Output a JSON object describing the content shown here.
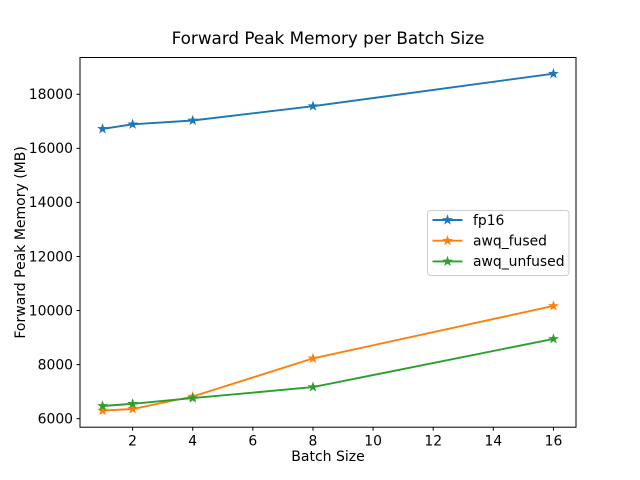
{
  "figure": {
    "background": "#ffffff",
    "frame_color": "#000000",
    "tick_color": "#000000",
    "legend_border_color": "#cccccc"
  },
  "chart_data": {
    "type": "line",
    "title": "Forward Peak Memory per Batch Size",
    "xlabel": "Batch Size",
    "ylabel": "Forward Peak Memory (MB)",
    "x": [
      1,
      2,
      4,
      8,
      16
    ],
    "series": [
      {
        "name": "fp16",
        "color": "#1f77b4",
        "marker": "star",
        "values": [
          16720,
          16890,
          17030,
          17560,
          18760
        ]
      },
      {
        "name": "awq_fused",
        "color": "#ff7f0e",
        "marker": "star",
        "values": [
          6300,
          6360,
          6820,
          8230,
          10170
        ]
      },
      {
        "name": "awq_unfused",
        "color": "#2ca02c",
        "marker": "star",
        "values": [
          6470,
          6550,
          6760,
          7170,
          8950
        ]
      }
    ],
    "xlim": [
      0.25,
      16.75
    ],
    "ylim": [
      5685,
      19360
    ],
    "xticks": [
      2,
      4,
      6,
      8,
      10,
      12,
      14,
      16
    ],
    "yticks": [
      6000,
      8000,
      10000,
      12000,
      14000,
      16000,
      18000
    ],
    "grid": false,
    "legend": {
      "position": "center right",
      "entries": [
        "fp16",
        "awq_fused",
        "awq_unfused"
      ]
    }
  }
}
